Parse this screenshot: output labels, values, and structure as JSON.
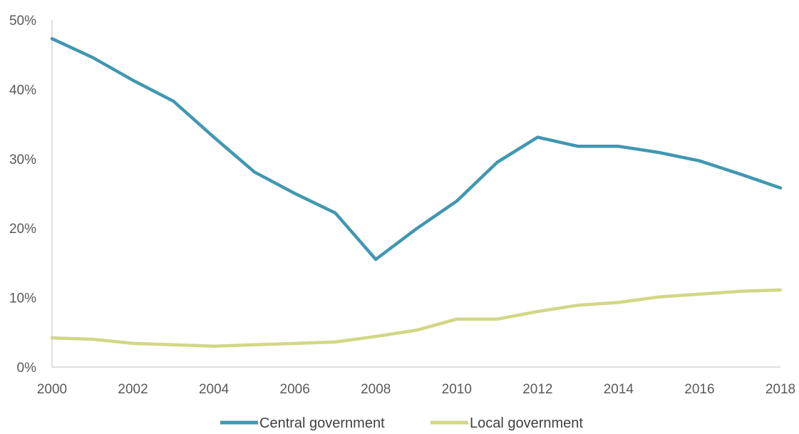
{
  "chart_data": {
    "type": "line",
    "title": "",
    "xlabel": "",
    "ylabel": "",
    "x": [
      2000,
      2001,
      2002,
      2003,
      2004,
      2005,
      2006,
      2007,
      2008,
      2009,
      2010,
      2011,
      2012,
      2013,
      2014,
      2015,
      2016,
      2017,
      2018
    ],
    "x_tick_labels": [
      "2000",
      "2002",
      "2004",
      "2006",
      "2008",
      "2010",
      "2012",
      "2014",
      "2016",
      "2018"
    ],
    "y_tick_labels": [
      "0%",
      "10%",
      "20%",
      "30%",
      "40%",
      "50%"
    ],
    "xlim": [
      2000,
      2018
    ],
    "ylim": [
      0,
      50
    ],
    "y_unit": "%",
    "grid": false,
    "legend_position": "bottom",
    "series": [
      {
        "name": "Central government",
        "color": "#4197b2",
        "values": [
          47.3,
          44.6,
          41.3,
          38.3,
          33.1,
          28.1,
          25.0,
          22.2,
          15.5,
          19.9,
          23.9,
          29.5,
          33.1,
          31.8,
          31.8,
          30.9,
          29.7,
          27.8,
          25.8
        ]
      },
      {
        "name": "Local government",
        "color": "#d2d785",
        "values": [
          4.2,
          4.0,
          3.4,
          3.2,
          3.0,
          3.2,
          3.4,
          3.6,
          4.4,
          5.3,
          6.9,
          6.9,
          8.0,
          8.9,
          9.3,
          10.1,
          10.5,
          10.9,
          11.1
        ]
      }
    ]
  }
}
